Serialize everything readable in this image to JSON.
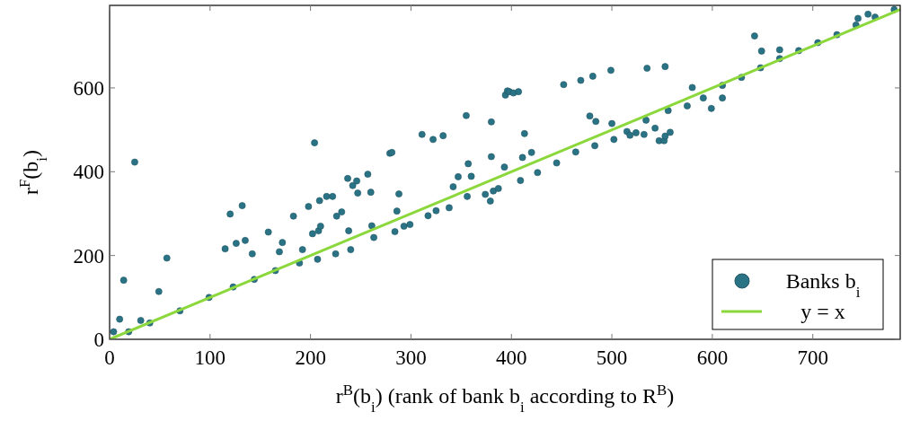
{
  "chart_data": {
    "type": "scatter",
    "xlabel": "r$^{B}$(b$_{i}$) (rank of bank b$_{i}$ according to R$^{B}$)",
    "ylabel": "r$^{F}$(b$_{i}$)",
    "xlim": [
      0,
      787
    ],
    "ylim": [
      0,
      797
    ],
    "xticks": [
      0,
      100,
      200,
      300,
      400,
      500,
      600,
      700
    ],
    "yticks": [
      0,
      200,
      400,
      600
    ],
    "grid": false,
    "legend": "bottom right",
    "series": [
      {
        "name": "Banks b$_{i}$",
        "color": "#2a7385",
        "marker": "circle",
        "x": [
          4,
          10,
          14,
          19,
          25,
          31,
          40,
          49,
          57,
          70,
          99,
          115,
          120,
          123,
          126,
          132,
          135,
          142,
          144,
          158,
          165,
          169,
          172,
          183,
          189,
          192,
          198,
          202,
          204,
          207,
          208,
          209,
          210,
          216,
          222,
          225,
          226,
          231,
          237,
          238,
          240,
          242,
          246,
          247,
          257,
          260,
          261,
          263,
          279,
          281,
          284,
          286,
          288,
          293,
          299,
          311,
          317,
          322,
          325,
          332,
          338,
          342,
          347,
          355,
          356,
          357,
          360,
          374,
          379,
          380,
          380,
          382,
          387,
          393,
          394,
          396,
          398,
          402,
          407,
          409,
          411,
          413,
          420,
          426,
          445,
          452,
          464,
          469,
          478,
          481,
          483,
          484,
          499,
          500,
          502,
          515,
          518,
          524,
          532,
          534,
          535,
          543,
          547,
          552,
          553,
          553,
          556,
          558,
          575,
          580,
          591,
          599,
          610,
          610,
          629,
          642,
          648,
          649,
          667,
          667,
          686,
          705,
          724,
          743,
          745,
          755,
          762,
          781
        ],
        "values": [
          18,
          48,
          141,
          18,
          423,
          45,
          39,
          114,
          194,
          68,
          100,
          216,
          299,
          125,
          229,
          319,
          236,
          204,
          143,
          256,
          164,
          209,
          231,
          294,
          182,
          214,
          317,
          252,
          469,
          191,
          259,
          331,
          270,
          341,
          341,
          204,
          294,
          304,
          384,
          259,
          214,
          367,
          378,
          349,
          394,
          351,
          271,
          243,
          444,
          446,
          257,
          306,
          347,
          270,
          274,
          489,
          295,
          477,
          307,
          486,
          314,
          364,
          388,
          534,
          341,
          419,
          389,
          346,
          330,
          436,
          519,
          354,
          360,
          411,
          583,
          593,
          591,
          588,
          591,
          379,
          434,
          491,
          446,
          398,
          421,
          608,
          447,
          618,
          533,
          628,
          462,
          520,
          642,
          515,
          477,
          496,
          487,
          493,
          489,
          523,
          647,
          504,
          474,
          474,
          651,
          485,
          546,
          494,
          557,
          601,
          576,
          551,
          576,
          606,
          625,
          724,
          648,
          688,
          670,
          691,
          689,
          708,
          727,
          750,
          766,
          776,
          769,
          787
        ]
      },
      {
        "name": "y = x",
        "color": "#8cd83c",
        "type": "line",
        "marker": "none",
        "line_style": "solid",
        "x": [
          0,
          787
        ],
        "values": [
          0,
          787
        ]
      }
    ]
  }
}
